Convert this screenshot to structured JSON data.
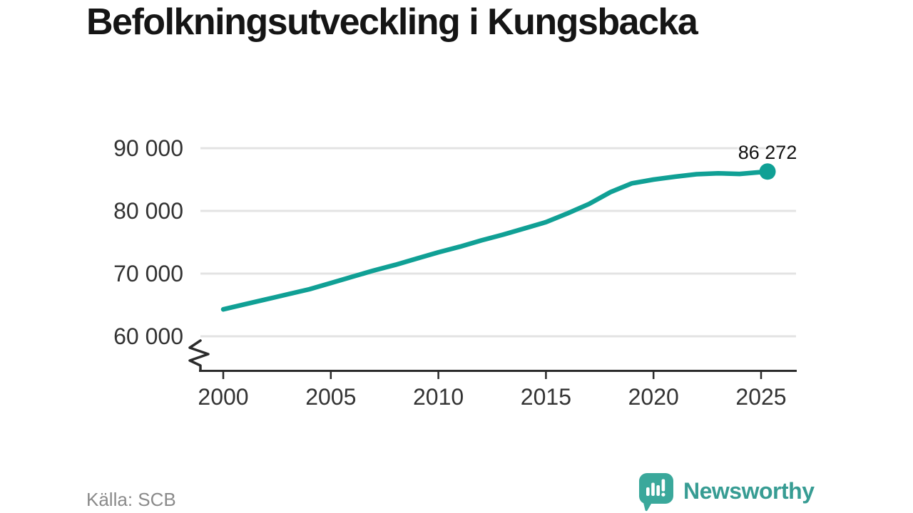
{
  "header": {
    "title": "Befolkningsutveckling i Kungsbacka"
  },
  "footer": {
    "source": "Källa: SCB",
    "logo_text": "Newsworthy"
  },
  "colors": {
    "line": "#10a095",
    "grid": "#e3e3e3",
    "axis": "#2b2b2b",
    "tick_label": "#333333",
    "end_label": "#111111",
    "source": "#8a8a8a",
    "logo_teal": "#379c93",
    "logo_icon_teal": "#3aa89b"
  },
  "chart_data": {
    "type": "line",
    "title": "Befolkningsutveckling i Kungsbacka",
    "xlabel": "",
    "ylabel": "",
    "grid": "horizontal",
    "legend": "none",
    "axis_break_below_min": true,
    "ylim": [
      60000,
      92000
    ],
    "xlim": [
      2000,
      2026.5
    ],
    "x": [
      2000,
      2001,
      2002,
      2003,
      2004,
      2005,
      2006,
      2007,
      2008,
      2009,
      2010,
      2011,
      2012,
      2013,
      2014,
      2015,
      2016,
      2017,
      2018,
      2019,
      2020,
      2021,
      2022,
      2023,
      2024,
      2025.3
    ],
    "series": [
      {
        "name": "Befolkning",
        "values": [
          64300,
          65100,
          65900,
          66700,
          67500,
          68500,
          69500,
          70500,
          71400,
          72400,
          73400,
          74300,
          75300,
          76200,
          77200,
          78200,
          79600,
          81100,
          83000,
          84400,
          85000,
          85450,
          85850,
          86000,
          85900,
          86272
        ]
      }
    ],
    "end_point": {
      "label": "86 272",
      "value": 86272
    },
    "y_ticks": {
      "values": [
        90000,
        80000,
        70000,
        60000
      ],
      "labels": [
        "90 000",
        "80 000",
        "70 000",
        "60 000"
      ]
    },
    "x_ticks": {
      "values": [
        2000,
        2005,
        2010,
        2015,
        2020,
        2025
      ],
      "labels": [
        "2000",
        "2005",
        "2010",
        "2015",
        "2020",
        "2025"
      ]
    }
  }
}
